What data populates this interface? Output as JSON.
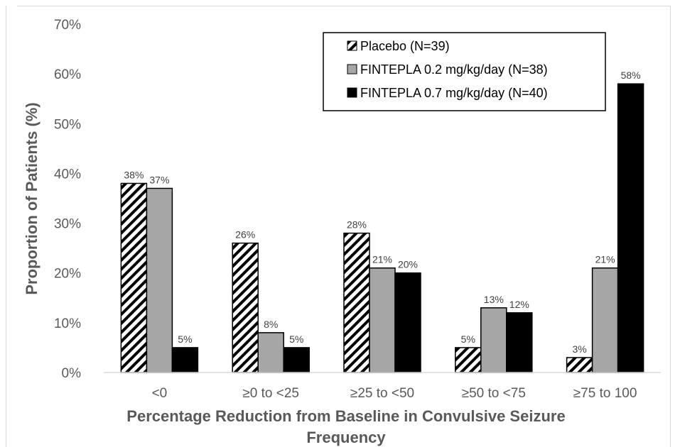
{
  "chart_data": {
    "type": "bar",
    "title": "",
    "xlabel_lines": [
      "Percentage Reduction from Baseline in Convulsive Seizure",
      "Frequency"
    ],
    "ylabel": "Proportion of Patients (%)",
    "categories": [
      "<0",
      "≥0 to <25",
      "≥25 to <50",
      "≥50 to <75",
      "≥75 to 100"
    ],
    "ylim": [
      0,
      70
    ],
    "yticks": [
      0,
      10,
      20,
      30,
      40,
      50,
      60,
      70
    ],
    "ytick_labels": [
      "0%",
      "10%",
      "20%",
      "30%",
      "40%",
      "50%",
      "60%",
      "70%"
    ],
    "grid": false,
    "legend_position": "top-right",
    "series": [
      {
        "name": "Placebo (N=39)",
        "values": [
          38,
          26,
          28,
          5,
          3
        ],
        "labels": [
          "38%",
          "26%",
          "28%",
          "5%",
          "3%"
        ],
        "pattern": "diagonal-hatch",
        "color": "#000000"
      },
      {
        "name": "FINTEPLA 0.2 mg/kg/day (N=38)",
        "values": [
          37,
          8,
          21,
          13,
          21
        ],
        "labels": [
          "37%",
          "8%",
          "21%",
          "13%",
          "21%"
        ],
        "pattern": "solid",
        "color": "#a6a6a6"
      },
      {
        "name": "FINTEPLA 0.7 mg/kg/day (N=40)",
        "values": [
          5,
          5,
          20,
          12,
          58
        ],
        "labels": [
          "5%",
          "5%",
          "20%",
          "12%",
          "58%"
        ],
        "pattern": "solid",
        "color": "#000000"
      }
    ]
  }
}
